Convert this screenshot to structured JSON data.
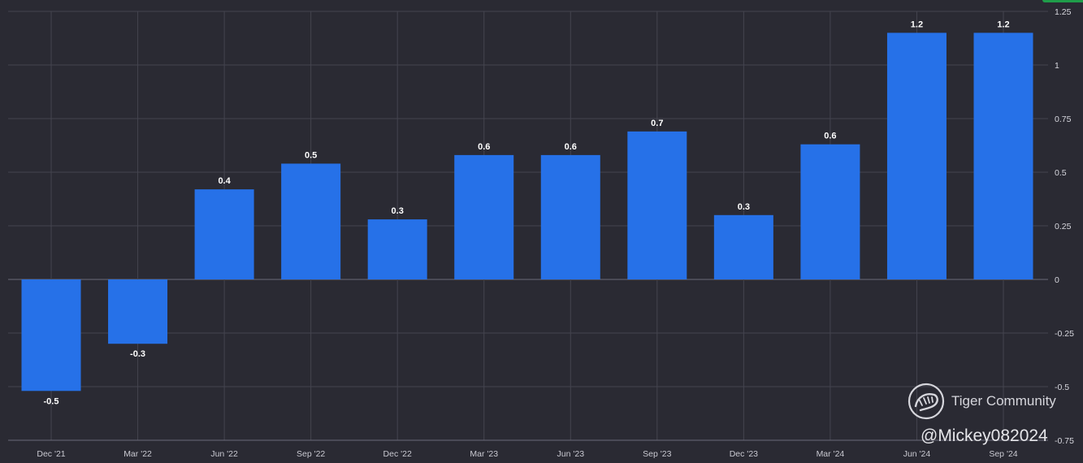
{
  "chart_data": {
    "type": "bar",
    "categories": [
      "Dec '21",
      "Mar '22",
      "Jun '22",
      "Sep '22",
      "Dec '22",
      "Mar '23",
      "Jun '23",
      "Sep '23",
      "Dec '23",
      "Mar '24",
      "Jun '24",
      "Sep '24"
    ],
    "values": [
      -0.52,
      -0.3,
      0.42,
      0.54,
      0.28,
      0.58,
      0.58,
      0.69,
      0.3,
      0.63,
      1.15,
      1.15
    ],
    "data_labels": [
      "-0.5",
      "-0.3",
      "0.4",
      "0.5",
      "0.3",
      "0.6",
      "0.6",
      "0.7",
      "0.3",
      "0.6",
      "1.2",
      "1.2"
    ],
    "y_ticks": [
      "1.25",
      "1",
      "0.75",
      "0.5",
      "0.25",
      "0",
      "-0.25",
      "-0.5",
      "-0.75"
    ],
    "y_tick_values": [
      1.25,
      1,
      0.75,
      0.5,
      0.25,
      0,
      -0.25,
      -0.5,
      -0.75
    ],
    "ylim": [
      -0.75,
      1.25
    ],
    "grid": true,
    "y_axis_side": "right",
    "title": "",
    "xlabel": "",
    "ylabel": ""
  },
  "colors": {
    "background": "#2a2a33",
    "bar": "#2671e8",
    "grid": "#44444f",
    "accent": "#1f9d4a"
  },
  "watermark": {
    "brand": "Tiger Community",
    "user": "@Mickey082024",
    "logo_icon": "tiger-community-logo-icon"
  }
}
